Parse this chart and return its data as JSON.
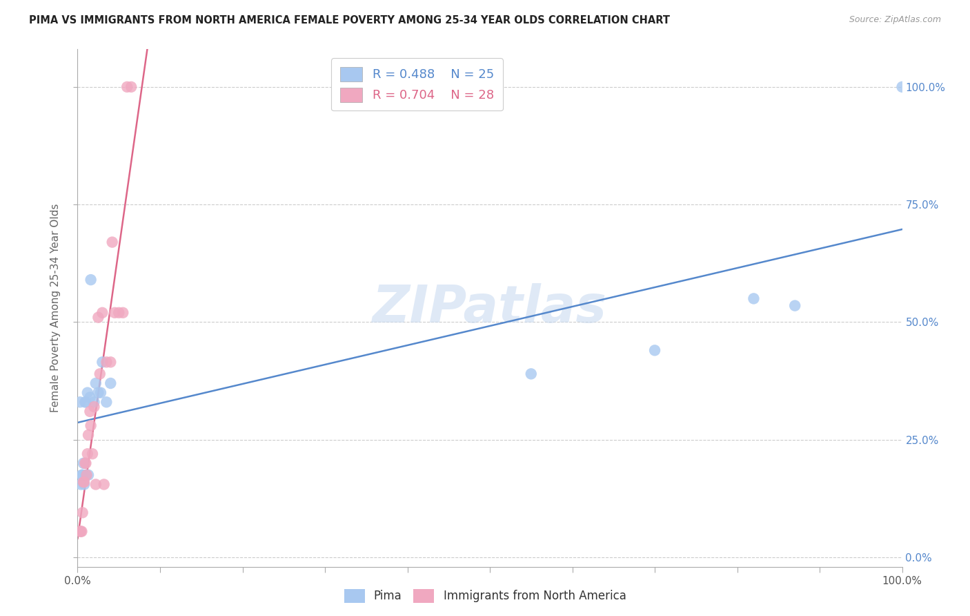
{
  "title": "PIMA VS IMMIGRANTS FROM NORTH AMERICA FEMALE POVERTY AMONG 25-34 YEAR OLDS CORRELATION CHART",
  "source": "Source: ZipAtlas.com",
  "ylabel": "Female Poverty Among 25-34 Year Olds",
  "watermark": "ZIPatlas",
  "pima_R": 0.488,
  "pima_N": 25,
  "immigrants_R": 0.704,
  "immigrants_N": 28,
  "pima_color": "#a8c8f0",
  "immigrants_color": "#f0a8c0",
  "pima_line_color": "#5588cc",
  "immigrants_line_color": "#dd6688",
  "xlim": [
    0,
    1.0
  ],
  "ylim": [
    -0.02,
    1.08
  ],
  "pima_x": [
    0.003,
    0.004,
    0.005,
    0.006,
    0.007,
    0.008,
    0.009,
    0.01,
    0.01,
    0.012,
    0.013,
    0.015,
    0.016,
    0.02,
    0.022,
    0.025,
    0.028,
    0.03,
    0.035,
    0.04,
    0.55,
    0.7,
    0.82,
    0.87,
    1.0
  ],
  "pima_y": [
    0.33,
    0.155,
    0.175,
    0.175,
    0.2,
    0.155,
    0.33,
    0.175,
    0.33,
    0.35,
    0.175,
    0.34,
    0.59,
    0.33,
    0.37,
    0.35,
    0.35,
    0.415,
    0.33,
    0.37,
    0.39,
    0.44,
    0.55,
    0.535,
    1.0
  ],
  "immigrants_x": [
    0.003,
    0.004,
    0.005,
    0.006,
    0.007,
    0.008,
    0.009,
    0.01,
    0.011,
    0.012,
    0.013,
    0.015,
    0.016,
    0.018,
    0.02,
    0.022,
    0.025,
    0.027,
    0.03,
    0.032,
    0.035,
    0.04,
    0.042,
    0.045,
    0.05,
    0.055,
    0.06,
    0.065
  ],
  "immigrants_y": [
    0.055,
    0.055,
    0.055,
    0.095,
    0.16,
    0.16,
    0.2,
    0.2,
    0.175,
    0.22,
    0.26,
    0.31,
    0.28,
    0.22,
    0.32,
    0.155,
    0.51,
    0.39,
    0.52,
    0.155,
    0.415,
    0.415,
    0.67,
    0.52,
    0.52,
    0.52,
    1.0,
    1.0
  ],
  "right_ytick_vals": [
    0.0,
    0.25,
    0.5,
    0.75,
    1.0
  ],
  "right_ytick_labels": [
    "0.0%",
    "25.0%",
    "50.0%",
    "75.0%",
    "100.0%"
  ],
  "xtick_vals": [
    0.0,
    0.1,
    0.2,
    0.3,
    0.4,
    0.5,
    0.6,
    0.7,
    0.8,
    0.9,
    1.0
  ],
  "x_edge_labels": [
    "0.0%",
    "100.0%"
  ],
  "background_color": "#ffffff",
  "grid_color": "#cccccc",
  "legend_R_color_pima": "#5588cc",
  "legend_R_color_imm": "#dd6688",
  "legend_N_color": "#333333"
}
